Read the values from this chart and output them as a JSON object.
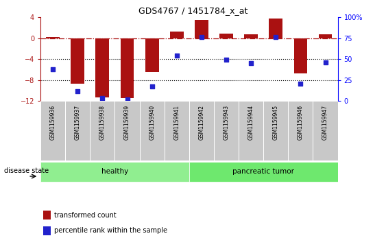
{
  "title": "GDS4767 / 1451784_x_at",
  "samples": [
    "GSM1159936",
    "GSM1159937",
    "GSM1159938",
    "GSM1159939",
    "GSM1159940",
    "GSM1159941",
    "GSM1159942",
    "GSM1159943",
    "GSM1159944",
    "GSM1159945",
    "GSM1159946",
    "GSM1159947"
  ],
  "bar_values": [
    0.2,
    -8.7,
    -11.3,
    -11.5,
    -6.5,
    1.3,
    3.5,
    0.9,
    0.7,
    3.8,
    -6.8,
    0.7
  ],
  "blue_values": [
    -6.0,
    -10.2,
    -11.5,
    -11.8,
    -9.2,
    -3.3,
    0.2,
    -4.1,
    -4.7,
    0.3,
    -8.7,
    -4.6
  ],
  "bar_color": "#aa1111",
  "blue_color": "#2222cc",
  "ylim_left": [
    -12,
    4
  ],
  "ylim_right": [
    0,
    100
  ],
  "yticks_left": [
    -12,
    -8,
    -4,
    0,
    4
  ],
  "yticks_right": [
    0,
    25,
    50,
    75,
    100
  ],
  "hline_y": 0,
  "dotted_lines": [
    -4,
    -8
  ],
  "healthy_label": "healthy",
  "tumor_label": "pancreatic tumor",
  "healthy_count": 6,
  "tumor_count": 6,
  "disease_state_label": "disease state",
  "legend_bar_label": "transformed count",
  "legend_blue_label": "percentile rank within the sample",
  "healthy_color": "#90ee90",
  "tumor_color": "#6ee86e",
  "tick_bg_color": "#c8c8c8",
  "bar_width": 0.55
}
